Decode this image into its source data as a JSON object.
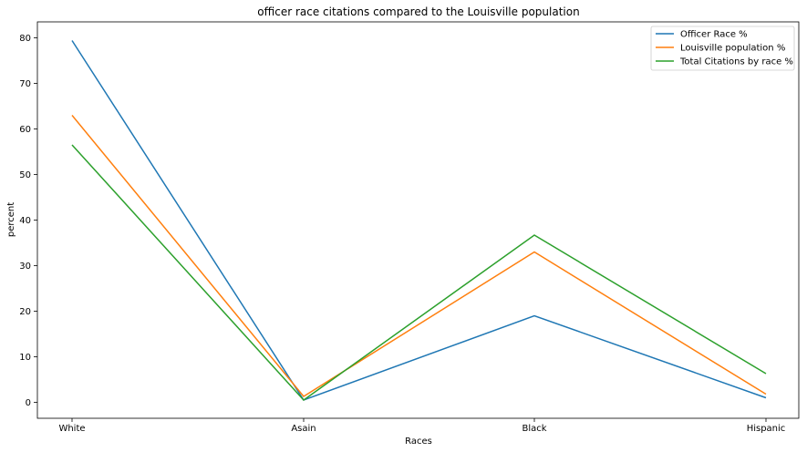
{
  "chart_data": {
    "type": "line",
    "title": "officer race citations compared to the Louisville population",
    "xlabel": "Races",
    "ylabel": "percent",
    "categories": [
      "White",
      "Asain",
      "Black",
      "Hispanic"
    ],
    "ylim": [
      -3.5,
      83.5
    ],
    "yticks": [
      0,
      10,
      20,
      30,
      40,
      50,
      60,
      70,
      80
    ],
    "grid": false,
    "legend_position": "top-right",
    "series": [
      {
        "name": "Officer Race %",
        "color": "#1f77b4",
        "values": [
          79.4,
          0.5,
          19.0,
          1.0
        ]
      },
      {
        "name": "Louisville population %",
        "color": "#ff7f0e",
        "values": [
          63.0,
          1.3,
          33.0,
          1.8
        ]
      },
      {
        "name": "Total Citations by race %",
        "color": "#2ca02c",
        "values": [
          56.5,
          0.5,
          36.7,
          6.3
        ]
      }
    ]
  }
}
